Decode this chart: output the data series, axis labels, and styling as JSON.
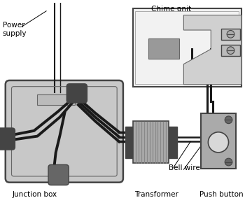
{
  "bg_color": "#ffffff",
  "outline_color": "#444444",
  "gray_light": "#c8c8c8",
  "gray_med": "#aaaaaa",
  "gray_dark": "#666666",
  "gray_darker": "#444444",
  "wire_color": "#1a1a1a",
  "wire_thick": 2.5,
  "wire_thin": 1.8,
  "labels": {
    "power_supply": "Power\nsupply",
    "chime_unit": "Chime unit",
    "junction_box": "Junction box",
    "transformer": "Transformer",
    "bell_wire": "Bell wire",
    "push_button": "Push button"
  },
  "font_size": 7.5
}
